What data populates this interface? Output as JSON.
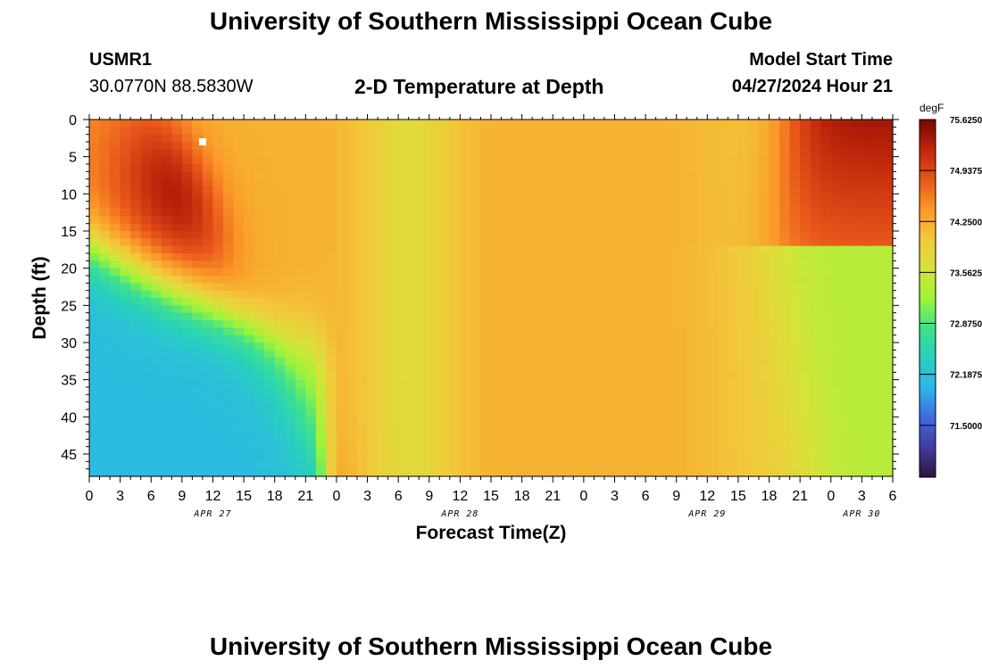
{
  "header": {
    "title": "University of Southern Mississippi Ocean Cube",
    "station_id": "USMR1",
    "station_coords": "30.0770N  88.5830W",
    "plot_title": "2-D Temperature at Depth",
    "model_start_label": "Model Start Time",
    "model_start_value": "04/27/2024 Hour 21"
  },
  "footer": {
    "title": "University of Southern Mississippi Ocean Cube"
  },
  "chart_data": {
    "type": "heatmap",
    "xlabel": "Forecast Time(Z)",
    "ylabel": "Depth (ft)",
    "x_hours": [
      0,
      78
    ],
    "y_range": [
      0,
      48
    ],
    "y_inverted": true,
    "x_ticks": [
      "0",
      "3",
      "6",
      "9",
      "12",
      "15",
      "18",
      "21",
      "0",
      "3",
      "6",
      "9",
      "12",
      "15",
      "18",
      "21",
      "0",
      "3",
      "6",
      "9",
      "12",
      "15",
      "18",
      "21",
      "0",
      "3",
      "6"
    ],
    "x_tick_hours": [
      0,
      3,
      6,
      9,
      12,
      15,
      18,
      21,
      24,
      27,
      30,
      33,
      36,
      39,
      42,
      45,
      48,
      51,
      54,
      57,
      60,
      63,
      66,
      69,
      72,
      75,
      78
    ],
    "date_labels": [
      {
        "text": "APR 27",
        "hour": 12
      },
      {
        "text": "APR 28",
        "hour": 36
      },
      {
        "text": "APR 29",
        "hour": 60
      },
      {
        "text": "APR 30",
        "hour": 75
      }
    ],
    "y_ticks": [
      "0",
      "5",
      "10",
      "15",
      "20",
      "25",
      "30",
      "35",
      "40",
      "45"
    ],
    "y_tick_values": [
      0,
      5,
      10,
      15,
      20,
      25,
      30,
      35,
      40,
      45
    ],
    "marker": {
      "hour": 11,
      "depth": 3
    },
    "colorbar": {
      "unit": "degF",
      "min": 70.8,
      "max": 75.625,
      "labels": [
        "75.6250",
        "74.9375",
        "74.2500",
        "73.5625",
        "72.8750",
        "72.1875",
        "71.5000"
      ],
      "label_values": [
        75.625,
        74.9375,
        74.25,
        73.5625,
        72.875,
        72.1875,
        71.5
      ]
    },
    "colormap": [
      "#30123b",
      "#3f3d9c",
      "#4169e1",
      "#2db6ea",
      "#28d0bc",
      "#3fe18c",
      "#9bf43a",
      "#d6e33a",
      "#f2c83a",
      "#fb9828",
      "#e8551a",
      "#c0260b",
      "#7a0403"
    ],
    "legend": "right"
  }
}
